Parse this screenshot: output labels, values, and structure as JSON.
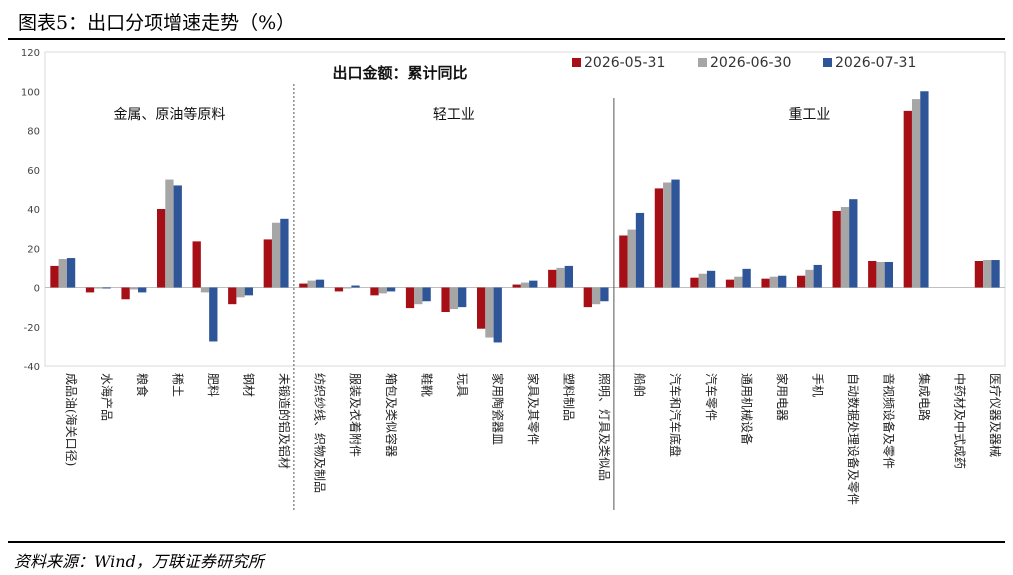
{
  "header": {
    "title": "图表5：出口分项增速走势（%）"
  },
  "footer": {
    "source": "资料来源：Wind，万联证券研究所"
  },
  "chart_data": {
    "type": "bar",
    "title": "出口金额：累计同比",
    "xlabel": "",
    "ylabel": "",
    "ylim": [
      -40,
      120
    ],
    "yticks": [
      -40,
      -20,
      0,
      20,
      40,
      60,
      80,
      100,
      120
    ],
    "grid": false,
    "legend_position": "top-right",
    "groups": [
      {
        "label": "金属、原油等原料",
        "start": 0,
        "end": 6
      },
      {
        "label": "轻工业",
        "start": 7,
        "end": 15
      },
      {
        "label": "重工业",
        "start": 16,
        "end": 26
      }
    ],
    "categories": [
      "成品油(海关口径)",
      "水海产品",
      "粮食",
      "稀土",
      "肥料",
      "钢材",
      "未锻造的铝及铝材",
      "纺织纱线、织物及制品",
      "服装及衣着附件",
      "箱包及类似容器",
      "鞋靴",
      "玩具",
      "家用陶瓷器皿",
      "家具及其零件",
      "塑料制品",
      "照明、灯具及类似品",
      "船舶",
      "汽车和汽车底盘",
      "汽车零件",
      "通用机械设备",
      "家用电器",
      "手机",
      "自动数据处理设备及零件",
      "音视频设备及零件",
      "集成电路",
      "中药材及中式成药",
      "医疗仪器及器械"
    ],
    "series": [
      {
        "name": "2026-05-31",
        "color": "#a50f15",
        "values": [
          11,
          -2.5,
          -6,
          40,
          23.5,
          -8.5,
          24.5,
          2,
          -2,
          -4,
          -10.5,
          -12.5,
          -21,
          1.5,
          9,
          -10,
          26.5,
          50.5,
          5,
          4,
          4.5,
          6,
          39,
          13.5,
          90,
          null,
          13.5
        ]
      },
      {
        "name": "2026-06-30",
        "color": "#a6a6a6",
        "values": [
          14.5,
          -0.5,
          -1,
          55,
          -2.5,
          -5,
          33,
          3.5,
          -0.5,
          -3,
          -8.5,
          -11,
          -25.5,
          2.5,
          10,
          -8.5,
          29.5,
          53.5,
          7,
          5.5,
          5.5,
          9,
          41,
          13,
          96,
          null,
          14
        ]
      },
      {
        "name": "2026-07-31",
        "color": "#2e5597",
        "values": [
          15,
          -0.5,
          -2.5,
          52,
          -27.5,
          -4,
          35,
          4,
          1,
          -2,
          -7,
          -10,
          -28,
          3.5,
          11,
          -7,
          38,
          55,
          8.5,
          9.5,
          6,
          11.5,
          45,
          13,
          100,
          null,
          14
        ]
      }
    ]
  }
}
